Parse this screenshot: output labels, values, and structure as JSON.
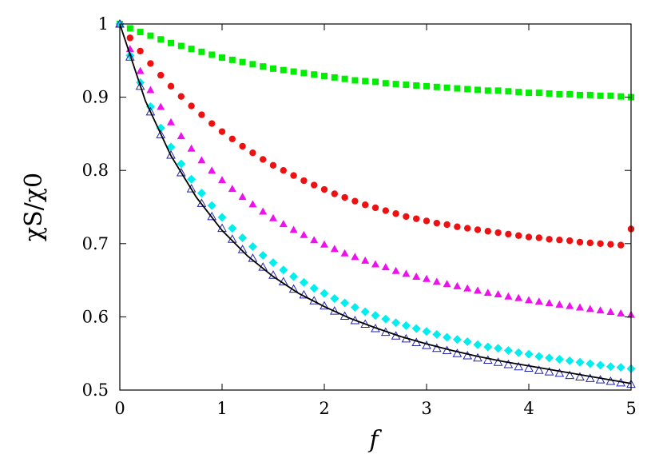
{
  "chart_data": {
    "type": "scatter",
    "title": "",
    "xlabel": "f",
    "ylabel": "χS/χ0",
    "xlim": [
      0,
      5
    ],
    "ylim": [
      0.5,
      1.0
    ],
    "x_ticks": [
      "0",
      "1",
      "2",
      "3",
      "4",
      "5"
    ],
    "y_ticks": [
      "0.5",
      "0.6",
      "0.7",
      "0.8",
      "0.9",
      "1"
    ],
    "grid": false,
    "legend": "none",
    "curve": {
      "style": "solid-line",
      "color": "#000000",
      "formula_note": "",
      "x": [
        0,
        0.25,
        0.5,
        0.75,
        1.0,
        1.25,
        1.5,
        1.75,
        2.0,
        2.25,
        2.5,
        2.75,
        3.0,
        3.25,
        3.5,
        3.75,
        4.0,
        4.25,
        4.5,
        4.75,
        5.0
      ],
      "y": [
        1.0,
        0.895,
        0.82,
        0.763,
        0.718,
        0.683,
        0.655,
        0.632,
        0.614,
        0.598,
        0.585,
        0.573,
        0.563,
        0.554,
        0.546,
        0.539,
        0.533,
        0.527,
        0.521,
        0.515,
        0.509
      ]
    },
    "series": [
      {
        "marker": "square",
        "color": "#00ee00",
        "x": [
          0,
          0.1,
          0.2,
          0.3,
          0.4,
          0.5,
          0.6,
          0.7,
          0.8,
          0.9,
          1.0,
          1.1,
          1.2,
          1.3,
          1.4,
          1.5,
          1.6,
          1.7,
          1.8,
          1.9,
          2.0,
          2.1,
          2.2,
          2.3,
          2.4,
          2.5,
          2.6,
          2.7,
          2.8,
          2.9,
          3.0,
          3.1,
          3.2,
          3.3,
          3.4,
          3.5,
          3.6,
          3.7,
          3.8,
          3.9,
          4.0,
          4.1,
          4.2,
          4.3,
          4.4,
          4.5,
          4.6,
          4.7,
          4.8,
          4.9,
          5.0
        ],
        "y": [
          1.0,
          0.994,
          0.989,
          0.984,
          0.979,
          0.974,
          0.97,
          0.966,
          0.962,
          0.958,
          0.954,
          0.951,
          0.948,
          0.945,
          0.942,
          0.939,
          0.937,
          0.935,
          0.933,
          0.931,
          0.929,
          0.927,
          0.925,
          0.923,
          0.922,
          0.921,
          0.919,
          0.918,
          0.917,
          0.916,
          0.915,
          0.914,
          0.913,
          0.912,
          0.911,
          0.91,
          0.909,
          0.909,
          0.908,
          0.907,
          0.906,
          0.906,
          0.905,
          0.904,
          0.904,
          0.903,
          0.903,
          0.902,
          0.902,
          0.901,
          0.9
        ]
      },
      {
        "marker": "circle",
        "color": "#ee1111",
        "x": [
          0,
          0.1,
          0.2,
          0.3,
          0.4,
          0.5,
          0.6,
          0.7,
          0.8,
          0.9,
          1.0,
          1.1,
          1.2,
          1.3,
          1.4,
          1.5,
          1.6,
          1.7,
          1.8,
          1.9,
          2.0,
          2.1,
          2.2,
          2.3,
          2.4,
          2.5,
          2.6,
          2.7,
          2.8,
          2.9,
          3.0,
          3.1,
          3.2,
          3.3,
          3.4,
          3.5,
          3.6,
          3.7,
          3.8,
          3.9,
          4.0,
          4.1,
          4.2,
          4.3,
          4.4,
          4.5,
          4.6,
          4.7,
          4.8,
          4.9,
          5.0
        ],
        "y": [
          1.0,
          0.981,
          0.963,
          0.946,
          0.93,
          0.915,
          0.901,
          0.888,
          0.876,
          0.864,
          0.853,
          0.843,
          0.833,
          0.824,
          0.815,
          0.807,
          0.8,
          0.793,
          0.786,
          0.78,
          0.774,
          0.768,
          0.763,
          0.758,
          0.753,
          0.749,
          0.745,
          0.741,
          0.737,
          0.734,
          0.731,
          0.728,
          0.726,
          0.723,
          0.721,
          0.719,
          0.717,
          0.715,
          0.713,
          0.711,
          0.709,
          0.708,
          0.706,
          0.705,
          0.704,
          0.702,
          0.701,
          0.7,
          0.699,
          0.698,
          0.72
        ]
      },
      {
        "marker": "triangle-filled",
        "color": "#ee11ee",
        "x": [
          0,
          0.1,
          0.2,
          0.3,
          0.4,
          0.5,
          0.6,
          0.7,
          0.8,
          0.9,
          1.0,
          1.1,
          1.2,
          1.3,
          1.4,
          1.5,
          1.6,
          1.7,
          1.8,
          1.9,
          2.0,
          2.1,
          2.2,
          2.3,
          2.4,
          2.5,
          2.6,
          2.7,
          2.8,
          2.9,
          3.0,
          3.1,
          3.2,
          3.3,
          3.4,
          3.5,
          3.6,
          3.7,
          3.8,
          3.9,
          4.0,
          4.1,
          4.2,
          4.3,
          4.4,
          4.5,
          4.6,
          4.7,
          4.8,
          4.9,
          5.0
        ],
        "y": [
          1.0,
          0.966,
          0.936,
          0.91,
          0.887,
          0.866,
          0.847,
          0.83,
          0.814,
          0.8,
          0.787,
          0.775,
          0.764,
          0.754,
          0.744,
          0.735,
          0.727,
          0.719,
          0.712,
          0.705,
          0.699,
          0.693,
          0.687,
          0.682,
          0.677,
          0.672,
          0.668,
          0.663,
          0.659,
          0.655,
          0.652,
          0.648,
          0.645,
          0.642,
          0.639,
          0.636,
          0.633,
          0.631,
          0.628,
          0.626,
          0.623,
          0.621,
          0.619,
          0.617,
          0.615,
          0.613,
          0.611,
          0.609,
          0.607,
          0.605,
          0.603
        ]
      },
      {
        "marker": "diamond",
        "color": "#00eeee",
        "x": [
          0,
          0.1,
          0.2,
          0.3,
          0.4,
          0.5,
          0.6,
          0.7,
          0.8,
          0.9,
          1.0,
          1.1,
          1.2,
          1.3,
          1.4,
          1.5,
          1.6,
          1.7,
          1.8,
          1.9,
          2.0,
          2.1,
          2.2,
          2.3,
          2.4,
          2.5,
          2.6,
          2.7,
          2.8,
          2.9,
          3.0,
          3.1,
          3.2,
          3.3,
          3.4,
          3.5,
          3.6,
          3.7,
          3.8,
          3.9,
          4.0,
          4.1,
          4.2,
          4.3,
          4.4,
          4.5,
          4.6,
          4.7,
          4.8,
          4.9,
          5.0
        ],
        "y": [
          1.0,
          0.957,
          0.92,
          0.887,
          0.858,
          0.832,
          0.809,
          0.788,
          0.769,
          0.752,
          0.736,
          0.721,
          0.708,
          0.696,
          0.684,
          0.674,
          0.664,
          0.655,
          0.647,
          0.639,
          0.632,
          0.625,
          0.619,
          0.613,
          0.607,
          0.602,
          0.597,
          0.592,
          0.588,
          0.584,
          0.58,
          0.576,
          0.572,
          0.569,
          0.566,
          0.562,
          0.559,
          0.557,
          0.554,
          0.551,
          0.549,
          0.546,
          0.544,
          0.542,
          0.54,
          0.538,
          0.536,
          0.534,
          0.532,
          0.531,
          0.529
        ]
      },
      {
        "marker": "triangle-open",
        "color": "#2222aa",
        "x": [
          0,
          0.1,
          0.2,
          0.3,
          0.4,
          0.5,
          0.6,
          0.7,
          0.8,
          0.9,
          1.0,
          1.1,
          1.2,
          1.3,
          1.4,
          1.5,
          1.6,
          1.7,
          1.8,
          1.9,
          2.0,
          2.1,
          2.2,
          2.3,
          2.4,
          2.5,
          2.6,
          2.7,
          2.8,
          2.9,
          3.0,
          3.1,
          3.2,
          3.3,
          3.4,
          3.5,
          3.6,
          3.7,
          3.8,
          3.9,
          4.0,
          4.1,
          4.2,
          4.3,
          4.4,
          4.5,
          4.6,
          4.7,
          4.8,
          4.9,
          5.0
        ],
        "y": [
          1.0,
          0.955,
          0.915,
          0.88,
          0.849,
          0.821,
          0.797,
          0.775,
          0.755,
          0.737,
          0.721,
          0.706,
          0.692,
          0.68,
          0.668,
          0.657,
          0.648,
          0.638,
          0.63,
          0.622,
          0.615,
          0.608,
          0.601,
          0.595,
          0.59,
          0.584,
          0.579,
          0.574,
          0.57,
          0.565,
          0.561,
          0.557,
          0.554,
          0.55,
          0.547,
          0.544,
          0.541,
          0.538,
          0.535,
          0.532,
          0.53,
          0.527,
          0.525,
          0.523,
          0.52,
          0.518,
          0.516,
          0.514,
          0.512,
          0.51,
          0.508
        ]
      }
    ]
  }
}
